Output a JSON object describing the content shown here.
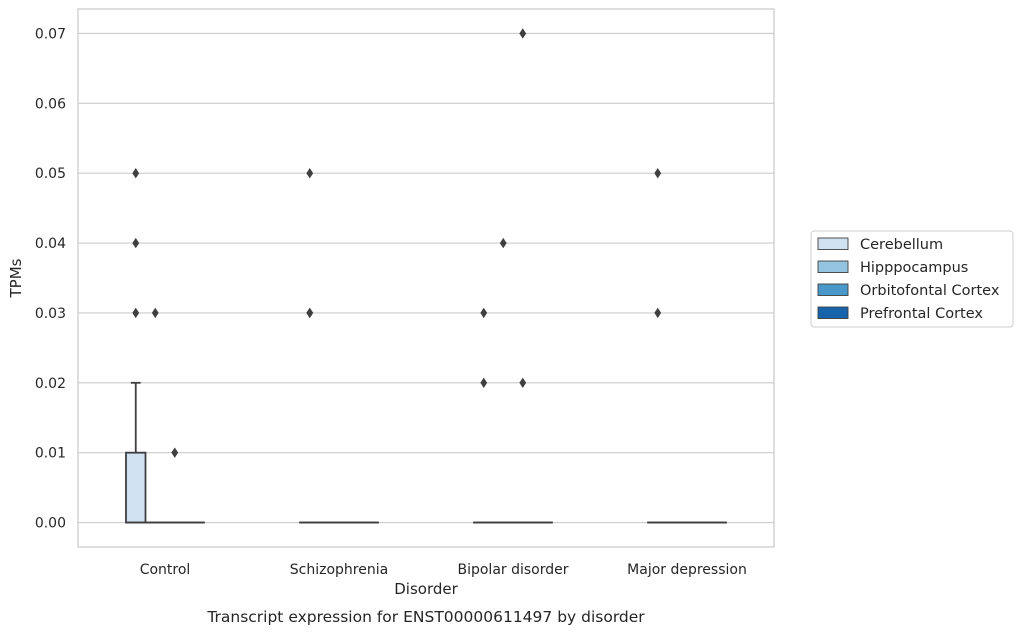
{
  "chart_data": {
    "type": "box",
    "title": "",
    "caption": "Transcript expression for ENST00000611497 by disorder",
    "xlabel": "Disorder",
    "ylabel": "TPMs",
    "categories": [
      "Control",
      "Schizophrenia",
      "Bipolar disorder",
      "Major depression"
    ],
    "ylim": [
      -0.0035,
      0.0735
    ],
    "yticks": [
      0.0,
      0.01,
      0.02,
      0.03,
      0.04,
      0.05,
      0.06,
      0.07
    ],
    "ytick_labels": [
      "0.00",
      "0.01",
      "0.02",
      "0.03",
      "0.04",
      "0.05",
      "0.06",
      "0.07"
    ],
    "grid": true,
    "legend_position": "right",
    "series": [
      {
        "name": "Cerebellum",
        "color": "#d0e1f2",
        "boxes": [
          {
            "category": "Control",
            "q1": 0.0,
            "median": 0.0,
            "q3": 0.01,
            "whisker_low": 0.0,
            "whisker_high": 0.02,
            "outliers": [
              0.03,
              0.04,
              0.05
            ]
          },
          {
            "category": "Schizophrenia",
            "q1": 0.0,
            "median": 0.0,
            "q3": 0.0,
            "whisker_low": 0.0,
            "whisker_high": 0.0,
            "outliers": [
              0.03,
              0.03,
              0.05
            ]
          },
          {
            "category": "Bipolar disorder",
            "q1": 0.0,
            "median": 0.0,
            "q3": 0.0,
            "whisker_low": 0.0,
            "whisker_high": 0.0,
            "outliers": [
              0.02,
              0.03
            ]
          },
          {
            "category": "Major depression",
            "q1": 0.0,
            "median": 0.0,
            "q3": 0.0,
            "whisker_low": 0.0,
            "whisker_high": 0.0,
            "outliers": [
              0.03,
              0.05
            ]
          }
        ]
      },
      {
        "name": "Hipppocampus",
        "color": "#94c4df",
        "boxes": [
          {
            "category": "Control",
            "q1": 0.0,
            "median": 0.0,
            "q3": 0.0,
            "whisker_low": 0.0,
            "whisker_high": 0.0,
            "outliers": [
              0.03
            ]
          },
          {
            "category": "Schizophrenia",
            "q1": 0.0,
            "median": 0.0,
            "q3": 0.0,
            "whisker_low": 0.0,
            "whisker_high": 0.0,
            "outliers": []
          },
          {
            "category": "Bipolar disorder",
            "q1": 0.0,
            "median": 0.0,
            "q3": 0.0,
            "whisker_low": 0.0,
            "whisker_high": 0.0,
            "outliers": [
              0.04
            ]
          },
          {
            "category": "Major depression",
            "q1": 0.0,
            "median": 0.0,
            "q3": 0.0,
            "whisker_low": 0.0,
            "whisker_high": 0.0,
            "outliers": []
          }
        ]
      },
      {
        "name": "Orbitofontal Cortex",
        "color": "#4a98c9",
        "boxes": [
          {
            "category": "Control",
            "q1": 0.0,
            "median": 0.0,
            "q3": 0.0,
            "whisker_low": 0.0,
            "whisker_high": 0.0,
            "outliers": [
              0.01
            ]
          },
          {
            "category": "Schizophrenia",
            "q1": 0.0,
            "median": 0.0,
            "q3": 0.0,
            "whisker_low": 0.0,
            "whisker_high": 0.0,
            "outliers": []
          },
          {
            "category": "Bipolar disorder",
            "q1": 0.0,
            "median": 0.0,
            "q3": 0.0,
            "whisker_low": 0.0,
            "whisker_high": 0.0,
            "outliers": [
              0.02,
              0.07
            ]
          },
          {
            "category": "Major depression",
            "q1": 0.0,
            "median": 0.0,
            "q3": 0.0,
            "whisker_low": 0.0,
            "whisker_high": 0.0,
            "outliers": []
          }
        ]
      },
      {
        "name": "Prefrontal Cortex",
        "color": "#1764ab",
        "boxes": [
          {
            "category": "Control",
            "q1": 0.0,
            "median": 0.0,
            "q3": 0.0,
            "whisker_low": 0.0,
            "whisker_high": 0.0,
            "outliers": []
          },
          {
            "category": "Schizophrenia",
            "q1": 0.0,
            "median": 0.0,
            "q3": 0.0,
            "whisker_low": 0.0,
            "whisker_high": 0.0,
            "outliers": []
          },
          {
            "category": "Bipolar disorder",
            "q1": 0.0,
            "median": 0.0,
            "q3": 0.0,
            "whisker_low": 0.0,
            "whisker_high": 0.0,
            "outliers": []
          },
          {
            "category": "Major depression",
            "q1": 0.0,
            "median": 0.0,
            "q3": 0.0,
            "whisker_low": 0.0,
            "whisker_high": 0.0,
            "outliers": []
          }
        ]
      }
    ],
    "colors": {
      "grid": "#cccccc",
      "frame": "#cccccc",
      "box_edge": "#3f3f3f",
      "outlier": "#3f3f3f"
    }
  }
}
